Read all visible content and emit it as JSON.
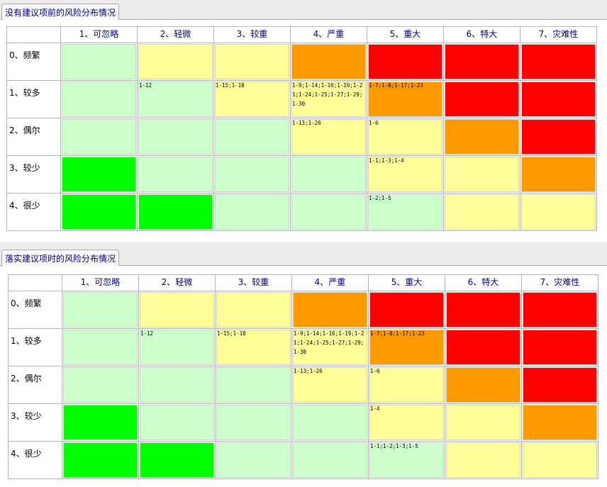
{
  "panels": [
    {
      "tab": "没有建议项前的风险分布情况",
      "table": {
        "columns": [
          "1、可忽略",
          "2、轻微",
          "3、较重",
          "4、严重",
          "5、重大",
          "6、特大",
          "7、灾难性"
        ],
        "rows": [
          {
            "label": "0、频繁",
            "cells": [
              null,
              null,
              null,
              null,
              null,
              null,
              null
            ],
            "colors": [
              "#ccffcc",
              "#ffff99",
              "#ffff99",
              "#ff9900",
              "#ff0000",
              "#ff0000",
              "#ff0000"
            ]
          },
          {
            "label": "1、较多",
            "cells": [
              null,
              "1-12",
              "1-15;1-18",
              "1-9;1-14;1-16;1-19;1-21;1-24;1-25;1-27;1-29;1-30",
              "1-7;1-8;1-17;1-23",
              null,
              null
            ],
            "colors": [
              "#ccffcc",
              "#ccffcc",
              "#ffff99",
              "#ffff99",
              "#ff9900",
              "#ff0000",
              "#ff0000"
            ]
          },
          {
            "label": "2、偶尔",
            "cells": [
              null,
              null,
              null,
              "1-13;1-26",
              "1-6",
              null,
              null
            ],
            "colors": [
              "#ccffcc",
              "#ccffcc",
              "#ccffcc",
              "#ffff99",
              "#ffff99",
              "#ff9900",
              "#ff0000"
            ]
          },
          {
            "label": "3、较少",
            "cells": [
              null,
              null,
              null,
              null,
              "1-1;1-3;1-4",
              null,
              null
            ],
            "colors": [
              "#00ff00",
              "#ccffcc",
              "#ccffcc",
              "#ccffcc",
              "#ffff99",
              "#ffff99",
              "#ff9900"
            ]
          },
          {
            "label": "4、很少",
            "cells": [
              null,
              null,
              null,
              null,
              "1-2;1-5",
              null,
              null
            ],
            "colors": [
              "#00ff00",
              "#00ff00",
              "#ccffcc",
              "#ccffcc",
              "#ccffcc",
              "#ffff99",
              "#ffff99"
            ]
          }
        ]
      }
    },
    {
      "tab": "落实建议项时的风险分布情况",
      "table": {
        "columns": [
          "1、可忽略",
          "2、轻微",
          "3、较重",
          "4、严重",
          "5、重大",
          "6、特大",
          "7、灾难性"
        ],
        "rows": [
          {
            "label": "0、频繁",
            "cells": [
              null,
              null,
              null,
              null,
              null,
              null,
              null
            ],
            "colors": [
              "#ccffcc",
              "#ffff99",
              "#ffff99",
              "#ff9900",
              "#ff0000",
              "#ff0000",
              "#ff0000"
            ]
          },
          {
            "label": "1、较多",
            "cells": [
              null,
              "1-12",
              "1-15;1-18",
              "1-9;1-14;1-16;1-19;1-21;1-24;1-25;1-27;1-29;1-30",
              "1-7;1-8;1-17;1-23",
              null,
              null
            ],
            "colors": [
              "#ccffcc",
              "#ccffcc",
              "#ffff99",
              "#ffff99",
              "#ff9900",
              "#ff0000",
              "#ff0000"
            ]
          },
          {
            "label": "2、偶尔",
            "cells": [
              null,
              null,
              null,
              "1-13;1-26",
              "1-6",
              null,
              null
            ],
            "colors": [
              "#ccffcc",
              "#ccffcc",
              "#ccffcc",
              "#ffff99",
              "#ffff99",
              "#ff9900",
              "#ff0000"
            ]
          },
          {
            "label": "3、较少",
            "cells": [
              null,
              null,
              null,
              null,
              "1-4",
              null,
              null
            ],
            "colors": [
              "#00ff00",
              "#ccffcc",
              "#ccffcc",
              "#ccffcc",
              "#ffff99",
              "#ffff99",
              "#ff9900"
            ]
          },
          {
            "label": "4、很少",
            "cells": [
              null,
              null,
              null,
              null,
              "1-1;1-2;1-3;1-5",
              null,
              null
            ],
            "colors": [
              "#00ff00",
              "#00ff00",
              "#ccffcc",
              "#ccffcc",
              "#ccffcc",
              "#ffff99",
              "#ffff99"
            ]
          }
        ]
      }
    }
  ]
}
